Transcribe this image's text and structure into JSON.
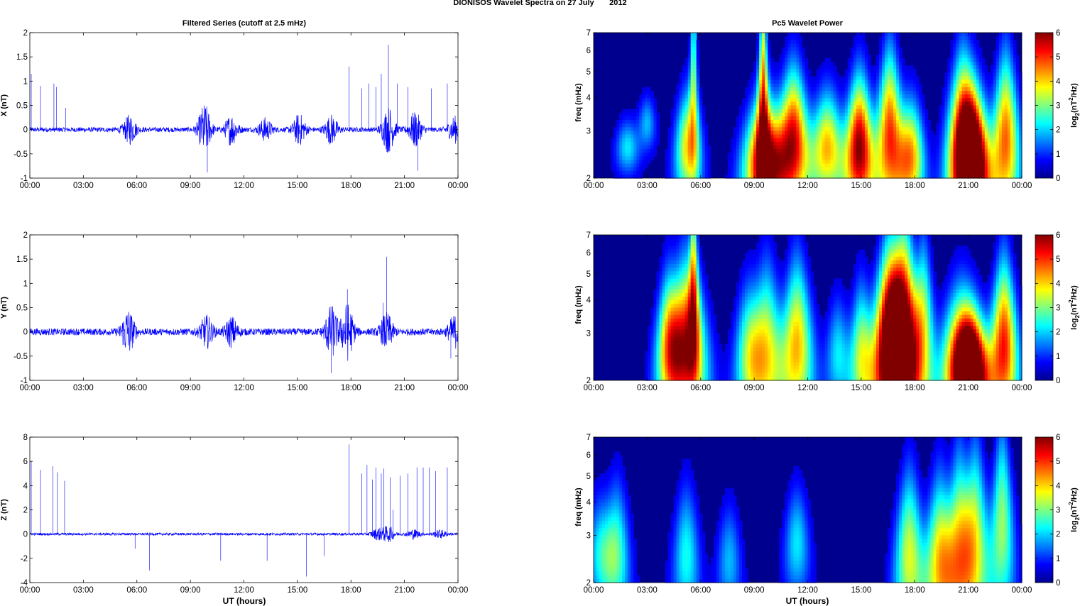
{
  "figure": {
    "suptitle_prefix": "DIONISOS Wavelet Spectra on 27 July",
    "suptitle_year": "2012",
    "left_title": "Filtered Series (cutoff at 2.5 mHz)",
    "right_title": "Pc5 Wavelet Power",
    "xlabel": "UT (hours)"
  },
  "chart_data": [
    {
      "type": "line",
      "panel": "X",
      "ylabel": "X (nT)",
      "x_ticks": [
        "00:00",
        "03:00",
        "06:00",
        "09:00",
        "12:00",
        "15:00",
        "18:00",
        "21:00",
        "00:00"
      ],
      "xlim_hours": [
        0,
        24
      ],
      "ylim": [
        -1,
        2
      ],
      "y_ticks": [
        -1,
        -0.5,
        0,
        0.5,
        1,
        1.5,
        2
      ],
      "y_tick_labels": [
        "-1",
        "-0.5",
        "0",
        "0.5",
        "1",
        "1.5",
        "2"
      ],
      "color": "#0000ff",
      "noise_amplitude": 0.05,
      "bursts": [
        {
          "t": 5.6,
          "amp": 0.28
        },
        {
          "t": 9.8,
          "amp": 0.5
        },
        {
          "t": 11.3,
          "amp": 0.3
        },
        {
          "t": 13.2,
          "amp": 0.22
        },
        {
          "t": 15.1,
          "amp": 0.3
        },
        {
          "t": 16.9,
          "amp": 0.28
        },
        {
          "t": 20.1,
          "amp": 0.45
        },
        {
          "t": 21.6,
          "amp": 0.35
        },
        {
          "t": 23.8,
          "amp": 0.25
        }
      ],
      "spikes": [
        {
          "t": 0.08,
          "v": 1.15
        },
        {
          "t": 0.6,
          "v": 0.9
        },
        {
          "t": 1.35,
          "v": 0.95
        },
        {
          "t": 1.5,
          "v": 0.88
        },
        {
          "t": 2.0,
          "v": 0.45
        },
        {
          "t": 9.95,
          "v": -0.88
        },
        {
          "t": 17.9,
          "v": 1.3
        },
        {
          "t": 18.6,
          "v": 0.85
        },
        {
          "t": 19.0,
          "v": 0.95
        },
        {
          "t": 19.4,
          "v": 0.88
        },
        {
          "t": 19.7,
          "v": 1.15
        },
        {
          "t": 20.1,
          "v": 1.75
        },
        {
          "t": 20.6,
          "v": 0.95
        },
        {
          "t": 21.2,
          "v": 0.88
        },
        {
          "t": 21.75,
          "v": -0.85
        },
        {
          "t": 22.5,
          "v": 0.85
        },
        {
          "t": 23.4,
          "v": 0.95
        }
      ]
    },
    {
      "type": "line",
      "panel": "Y",
      "ylabel": "Y (nT)",
      "x_ticks": [
        "00:00",
        "03:00",
        "06:00",
        "09:00",
        "12:00",
        "15:00",
        "18:00",
        "21:00",
        "00:00"
      ],
      "xlim_hours": [
        0,
        24
      ],
      "ylim": [
        -1,
        2
      ],
      "y_ticks": [
        -1,
        -0.5,
        0,
        0.5,
        1,
        1.5,
        2
      ],
      "y_tick_labels": [
        "-1",
        "-0.5",
        "0",
        "0.5",
        "1",
        "1.5",
        "2"
      ],
      "color": "#0000ff",
      "noise_amplitude": 0.07,
      "bursts": [
        {
          "t": 5.5,
          "amp": 0.45
        },
        {
          "t": 9.9,
          "amp": 0.3
        },
        {
          "t": 11.3,
          "amp": 0.28
        },
        {
          "t": 16.9,
          "amp": 0.5
        },
        {
          "t": 17.8,
          "amp": 0.55
        },
        {
          "t": 20.0,
          "amp": 0.35
        },
        {
          "t": 23.8,
          "amp": 0.3
        }
      ],
      "spikes": [
        {
          "t": 16.9,
          "v": -0.85
        },
        {
          "t": 17.8,
          "v": 0.88
        },
        {
          "t": 20.0,
          "v": 1.55
        },
        {
          "t": 19.8,
          "v": 0.6
        },
        {
          "t": 23.6,
          "v": -0.55
        }
      ]
    },
    {
      "type": "line",
      "panel": "Z",
      "ylabel": "Z (nT)",
      "x_ticks": [
        "00:00",
        "03:00",
        "06:00",
        "09:00",
        "12:00",
        "15:00",
        "18:00",
        "21:00",
        "00:00"
      ],
      "xlim_hours": [
        0,
        24
      ],
      "ylim": [
        -4,
        8
      ],
      "y_ticks": [
        -4,
        -2,
        0,
        2,
        4,
        6,
        8
      ],
      "y_tick_labels": [
        "-4",
        "-2",
        "0",
        "2",
        "4",
        "6",
        "8"
      ],
      "color": "#0000ff",
      "noise_amplitude": 0.1,
      "bursts": [
        {
          "t": 19.5,
          "amp": 0.4
        },
        {
          "t": 20.1,
          "amp": 0.6
        },
        {
          "t": 21.5,
          "amp": 0.35
        },
        {
          "t": 23.0,
          "amp": 0.3
        }
      ],
      "spikes": [
        {
          "t": 0.08,
          "v": 6.0
        },
        {
          "t": 0.6,
          "v": 5.3
        },
        {
          "t": 1.3,
          "v": 5.6
        },
        {
          "t": 1.55,
          "v": 5.1
        },
        {
          "t": 1.95,
          "v": 4.4
        },
        {
          "t": 5.9,
          "v": -1.2
        },
        {
          "t": 6.7,
          "v": -3.0
        },
        {
          "t": 10.7,
          "v": -2.2
        },
        {
          "t": 13.3,
          "v": -2.2
        },
        {
          "t": 15.5,
          "v": -3.5
        },
        {
          "t": 16.5,
          "v": -1.8
        },
        {
          "t": 17.9,
          "v": 7.4
        },
        {
          "t": 18.6,
          "v": 5.0
        },
        {
          "t": 18.9,
          "v": 5.7
        },
        {
          "t": 19.2,
          "v": 4.5
        },
        {
          "t": 19.4,
          "v": 5.5
        },
        {
          "t": 19.7,
          "v": 5.0
        },
        {
          "t": 19.85,
          "v": 5.4
        },
        {
          "t": 20.2,
          "v": 4.7
        },
        {
          "t": 20.35,
          "v": 2.0
        },
        {
          "t": 20.75,
          "v": 4.8
        },
        {
          "t": 21.2,
          "v": 5.0
        },
        {
          "t": 21.7,
          "v": 5.5
        },
        {
          "t": 22.05,
          "v": 5.5
        },
        {
          "t": 22.4,
          "v": 5.5
        },
        {
          "t": 22.75,
          "v": 5.2
        },
        {
          "t": 23.4,
          "v": 5.5
        }
      ]
    },
    {
      "type": "heatmap",
      "panel": "X wavelet",
      "ylabel": "freq (mHz)",
      "x_ticks": [
        "00:00",
        "03:00",
        "06:00",
        "09:00",
        "12:00",
        "15:00",
        "18:00",
        "21:00",
        "00:00"
      ],
      "xlim_hours": [
        0,
        24
      ],
      "ylim_mhz": [
        2,
        7
      ],
      "y_scale": "log",
      "y_ticks": [
        2,
        3,
        4,
        5,
        6,
        7
      ],
      "y_tick_labels": [
        "2",
        "3",
        "4",
        "5",
        "6",
        "7"
      ],
      "colorbar": {
        "min": 0,
        "max": 6,
        "ticks": [
          "0",
          "1",
          "2",
          "3",
          "4",
          "5",
          "6"
        ],
        "label_base": "log",
        "label_sub": "2",
        "label_mid": "(nT",
        "label_sup": "2",
        "label_end": "/Hz)"
      },
      "blobs": [
        {
          "t": 1.9,
          "f": 2.6,
          "v": 1.8,
          "w": 0.18,
          "h": 0.1
        },
        {
          "t": 3.0,
          "f": 3.2,
          "v": 1.5,
          "w": 0.15,
          "h": 0.1
        },
        {
          "t": 5.3,
          "f": 2.6,
          "v": 3.5,
          "w": 0.2,
          "h": 0.2
        },
        {
          "t": 5.6,
          "f": 5.0,
          "v": 2.5,
          "w": 0.08,
          "h": 0.35
        },
        {
          "t": 9.6,
          "f": 2.3,
          "v": 5.8,
          "w": 0.3,
          "h": 0.22
        },
        {
          "t": 9.5,
          "f": 4.6,
          "v": 3.8,
          "w": 0.1,
          "h": 0.35
        },
        {
          "t": 11.2,
          "f": 2.8,
          "v": 5.0,
          "w": 0.25,
          "h": 0.25
        },
        {
          "t": 13.1,
          "f": 2.6,
          "v": 3.8,
          "w": 0.25,
          "h": 0.2
        },
        {
          "t": 14.9,
          "f": 2.6,
          "v": 5.6,
          "w": 0.22,
          "h": 0.25
        },
        {
          "t": 16.6,
          "f": 2.9,
          "v": 4.6,
          "w": 0.22,
          "h": 0.3
        },
        {
          "t": 17.8,
          "f": 2.4,
          "v": 3.8,
          "w": 0.2,
          "h": 0.2
        },
        {
          "t": 20.7,
          "f": 2.8,
          "v": 4.8,
          "w": 0.25,
          "h": 0.3
        },
        {
          "t": 21.3,
          "f": 2.3,
          "v": 6.0,
          "w": 0.25,
          "h": 0.25
        },
        {
          "t": 23.1,
          "f": 2.8,
          "v": 4.3,
          "w": 0.22,
          "h": 0.3
        }
      ]
    },
    {
      "type": "heatmap",
      "panel": "Y wavelet",
      "ylabel": "freq (mHz)",
      "x_ticks": [
        "00:00",
        "03:00",
        "06:00",
        "09:00",
        "12:00",
        "15:00",
        "18:00",
        "21:00",
        "00:00"
      ],
      "xlim_hours": [
        0,
        24
      ],
      "ylim_mhz": [
        2,
        7
      ],
      "y_scale": "log",
      "y_ticks": [
        2,
        3,
        4,
        5,
        6,
        7
      ],
      "y_tick_labels": [
        "2",
        "3",
        "4",
        "5",
        "6",
        "7"
      ],
      "colorbar": {
        "min": 0,
        "max": 6,
        "ticks": [
          "0",
          "1",
          "2",
          "3",
          "4",
          "5",
          "6"
        ],
        "label_base": "log",
        "label_sub": "2",
        "label_mid": "(nT",
        "label_sup": "2",
        "label_end": "/Hz)"
      },
      "blobs": [
        {
          "t": 4.2,
          "f": 2.8,
          "v": 3.0,
          "w": 0.2,
          "h": 0.25
        },
        {
          "t": 5.2,
          "f": 2.7,
          "v": 5.0,
          "w": 0.3,
          "h": 0.3
        },
        {
          "t": 5.6,
          "f": 4.8,
          "v": 3.0,
          "w": 0.1,
          "h": 0.35
        },
        {
          "t": 8.7,
          "f": 2.5,
          "v": 2.5,
          "w": 0.22,
          "h": 0.25
        },
        {
          "t": 9.7,
          "f": 2.6,
          "v": 3.2,
          "w": 0.25,
          "h": 0.3
        },
        {
          "t": 11.4,
          "f": 2.7,
          "v": 3.8,
          "w": 0.25,
          "h": 0.3
        },
        {
          "t": 13.7,
          "f": 2.5,
          "v": 1.8,
          "w": 0.18,
          "h": 0.2
        },
        {
          "t": 15.0,
          "f": 2.5,
          "v": 2.8,
          "w": 0.18,
          "h": 0.25
        },
        {
          "t": 16.6,
          "f": 2.8,
          "v": 5.8,
          "w": 0.28,
          "h": 0.35
        },
        {
          "t": 17.4,
          "f": 2.9,
          "v": 5.5,
          "w": 0.28,
          "h": 0.4
        },
        {
          "t": 18.5,
          "f": 3.4,
          "v": 2.5,
          "w": 0.18,
          "h": 0.3
        },
        {
          "t": 20.6,
          "f": 2.4,
          "v": 4.3,
          "w": 0.3,
          "h": 0.25
        },
        {
          "t": 21.2,
          "f": 2.2,
          "v": 5.6,
          "w": 0.25,
          "h": 0.2
        },
        {
          "t": 23.0,
          "f": 2.7,
          "v": 4.8,
          "w": 0.22,
          "h": 0.3
        }
      ]
    },
    {
      "type": "heatmap",
      "panel": "Z wavelet",
      "ylabel": "freq (mHz)",
      "xlabel": "UT (hours)",
      "x_ticks": [
        "00:00",
        "03:00",
        "06:00",
        "09:00",
        "12:00",
        "15:00",
        "18:00",
        "21:00",
        "00:00"
      ],
      "xlim_hours": [
        0,
        24
      ],
      "ylim_mhz": [
        2,
        7
      ],
      "y_scale": "log",
      "y_ticks": [
        2,
        3,
        4,
        5,
        6,
        7
      ],
      "y_tick_labels": [
        "2",
        "3",
        "4",
        "5",
        "6",
        "7"
      ],
      "colorbar": {
        "min": 0,
        "max": 6,
        "ticks": [
          "0",
          "1",
          "2",
          "3",
          "4",
          "5",
          "6"
        ],
        "label_base": "log",
        "label_sub": "2",
        "label_mid": "(nT",
        "label_sup": "2",
        "label_end": "/Hz)"
      },
      "blobs": [
        {
          "t": 0.4,
          "f": 2.6,
          "v": 1.8,
          "w": 0.22,
          "h": 0.2
        },
        {
          "t": 1.3,
          "f": 2.6,
          "v": 2.2,
          "w": 0.2,
          "h": 0.25
        },
        {
          "t": 5.2,
          "f": 2.5,
          "v": 2.0,
          "w": 0.2,
          "h": 0.25
        },
        {
          "t": 7.6,
          "f": 2.4,
          "v": 1.5,
          "w": 0.18,
          "h": 0.2
        },
        {
          "t": 11.4,
          "f": 2.8,
          "v": 1.8,
          "w": 0.2,
          "h": 0.2
        },
        {
          "t": 17.7,
          "f": 2.5,
          "v": 3.2,
          "w": 0.22,
          "h": 0.3
        },
        {
          "t": 19.4,
          "f": 2.4,
          "v": 3.5,
          "w": 0.22,
          "h": 0.3
        },
        {
          "t": 20.5,
          "f": 2.7,
          "v": 3.2,
          "w": 0.22,
          "h": 0.35
        },
        {
          "t": 21.4,
          "f": 2.9,
          "v": 3.0,
          "w": 0.22,
          "h": 0.35
        },
        {
          "t": 22.9,
          "f": 3.3,
          "v": 2.8,
          "w": 0.2,
          "h": 0.35
        }
      ]
    }
  ]
}
